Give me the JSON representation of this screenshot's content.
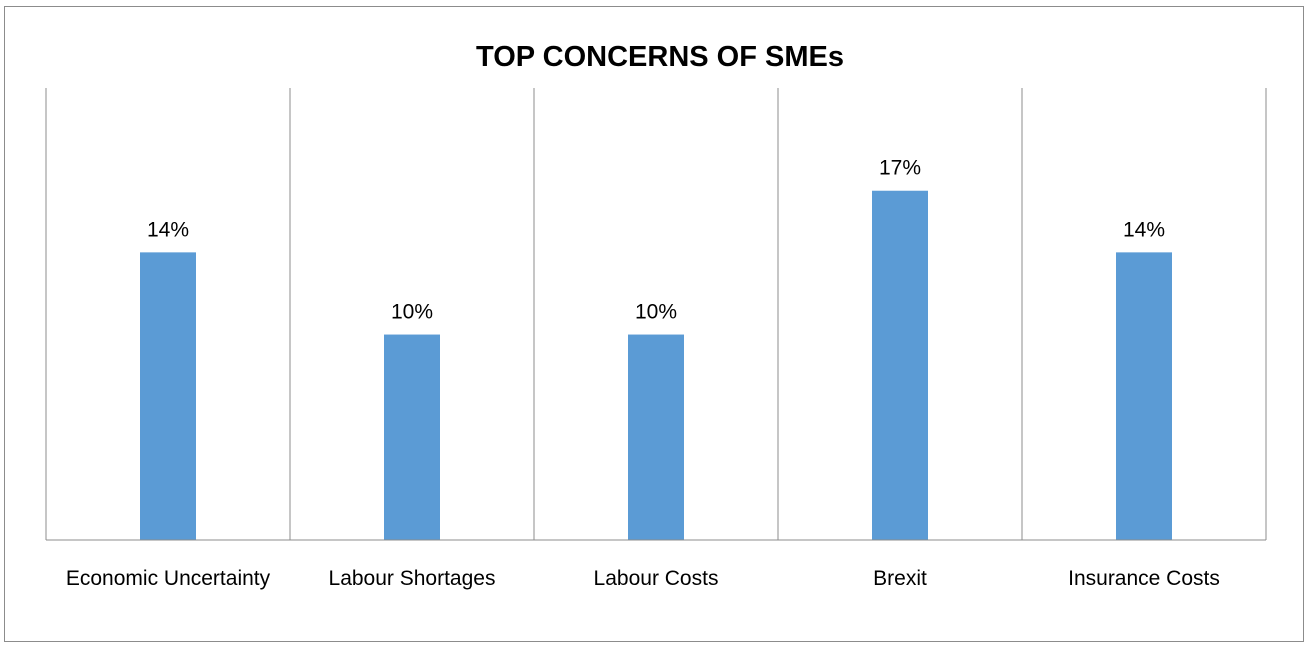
{
  "chart_data": {
    "type": "bar",
    "title": "TOP CONCERNS OF SMEs",
    "xlabel": "",
    "ylabel": "",
    "categories": [
      "Economic Uncertainty",
      "Labour Shortages",
      "Labour Costs",
      "Brexit",
      "Insurance Costs"
    ],
    "series": [
      {
        "values": [
          14,
          10,
          10,
          17,
          14
        ],
        "labels": [
          "14%",
          "10%",
          "10%",
          "17%",
          "14%"
        ],
        "color": "#5b9bd5"
      }
    ],
    "ylim": [
      0,
      22
    ],
    "grid": "vertical category separators",
    "legend": "none"
  }
}
